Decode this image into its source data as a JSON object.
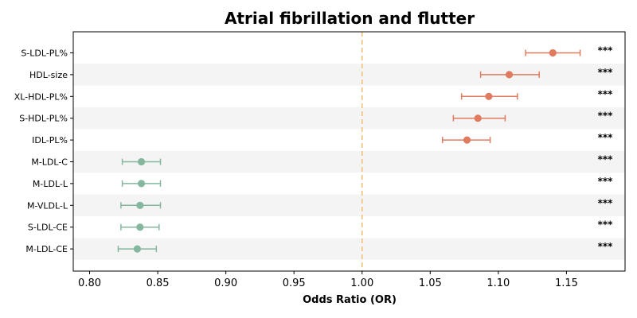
{
  "chart_data": {
    "type": "forest",
    "title": "Atrial fibrillation and flutter",
    "xlabel": "Odds Ratio (OR)",
    "xlim": [
      0.788,
      1.193
    ],
    "xticks": [
      0.8,
      0.85,
      0.9,
      0.95,
      1.0,
      1.05,
      1.1,
      1.15
    ],
    "xtick_labels": [
      "0.80",
      "0.85",
      "0.90",
      "0.95",
      "1.00",
      "1.05",
      "1.10",
      "1.15"
    ],
    "reference_line": 1.0,
    "grid": false,
    "colors": {
      "positive": "#e07b5f",
      "negative": "#85b79e",
      "reference_line": "#f5c07a",
      "band": "#f4f4f4"
    },
    "rows": [
      {
        "label": "S-LDL-PL%",
        "or": 1.14,
        "ci_low": 1.12,
        "ci_high": 1.16,
        "significance": "***"
      },
      {
        "label": "HDL-size",
        "or": 1.108,
        "ci_low": 1.087,
        "ci_high": 1.13,
        "significance": "***"
      },
      {
        "label": "XL-HDL-PL%",
        "or": 1.093,
        "ci_low": 1.073,
        "ci_high": 1.114,
        "significance": "***"
      },
      {
        "label": "S-HDL-PL%",
        "or": 1.085,
        "ci_low": 1.067,
        "ci_high": 1.105,
        "significance": "***"
      },
      {
        "label": "IDL-PL%",
        "or": 1.077,
        "ci_low": 1.059,
        "ci_high": 1.094,
        "significance": "***"
      },
      {
        "label": "M-LDL-C",
        "or": 0.838,
        "ci_low": 0.824,
        "ci_high": 0.852,
        "significance": "***"
      },
      {
        "label": "M-LDL-L",
        "or": 0.838,
        "ci_low": 0.824,
        "ci_high": 0.852,
        "significance": "***"
      },
      {
        "label": "M-VLDL-L",
        "or": 0.837,
        "ci_low": 0.823,
        "ci_high": 0.852,
        "significance": "***"
      },
      {
        "label": "S-LDL-CE",
        "or": 0.837,
        "ci_low": 0.823,
        "ci_high": 0.851,
        "significance": "***"
      },
      {
        "label": "M-LDL-CE",
        "or": 0.835,
        "ci_low": 0.821,
        "ci_high": 0.849,
        "significance": "***"
      }
    ]
  }
}
